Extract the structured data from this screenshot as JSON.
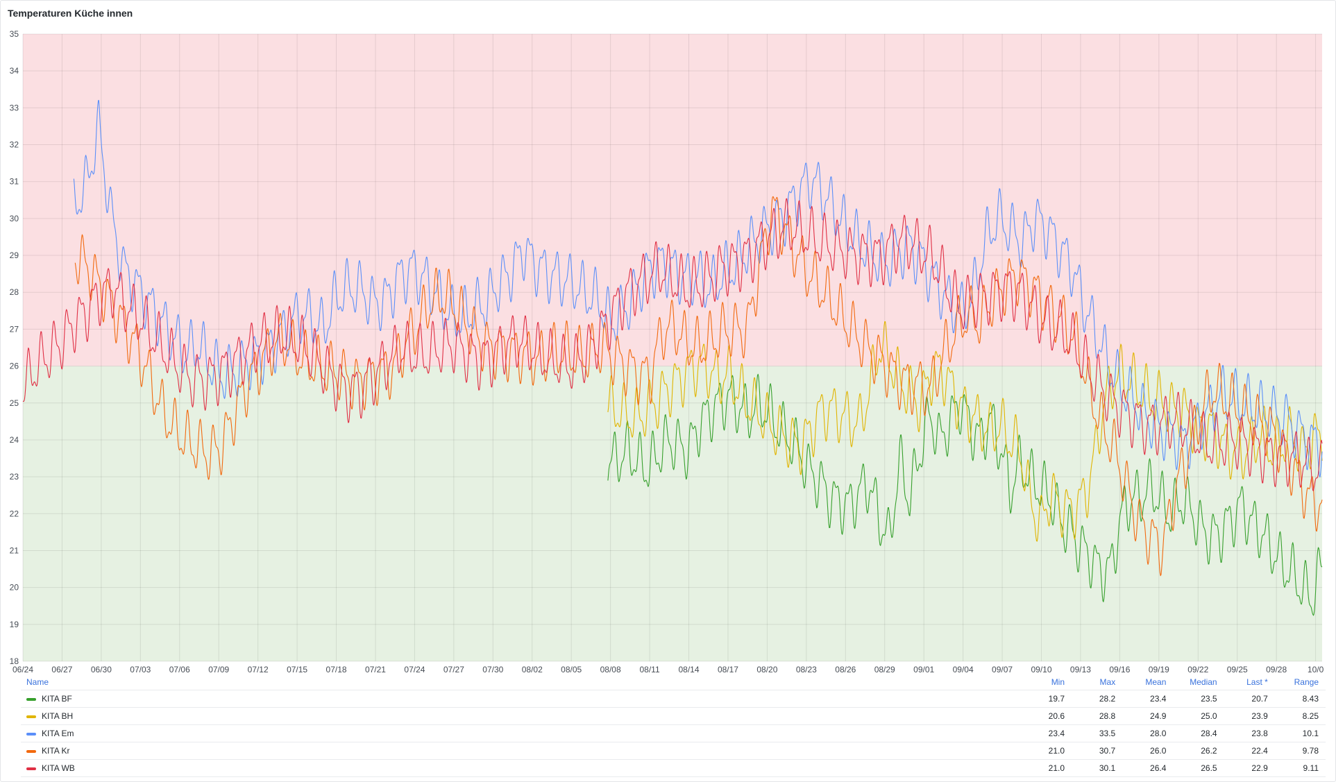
{
  "panel": {
    "title": "Temperaturen Küche innen"
  },
  "chart_data": {
    "type": "line",
    "title": "Temperaturen Küche innen",
    "ylim": [
      18,
      35
    ],
    "y_ticks": [
      18,
      19,
      20,
      21,
      22,
      23,
      24,
      25,
      26,
      27,
      28,
      29,
      30,
      31,
      32,
      33,
      34,
      35
    ],
    "x_tick_labels": [
      "06/24",
      "06/27",
      "06/30",
      "07/03",
      "07/06",
      "07/09",
      "07/12",
      "07/15",
      "07/18",
      "07/21",
      "07/24",
      "07/27",
      "07/30",
      "08/02",
      "08/05",
      "08/08",
      "08/11",
      "08/14",
      "08/17",
      "08/20",
      "08/23",
      "08/26",
      "08/29",
      "09/01",
      "09/04",
      "09/07",
      "09/10",
      "09/13",
      "09/16",
      "09/19",
      "09/22",
      "09/25",
      "09/28",
      "10/0"
    ],
    "x_range_days": [
      0,
      99.5
    ],
    "grid": true,
    "thresholds": [
      {
        "from": 18,
        "to": 26,
        "color": "#e6f1e2"
      },
      {
        "from": 26,
        "to": 35,
        "color": "#fbdfe2"
      }
    ],
    "series": [
      {
        "name": "KITA BF",
        "color": "#37a02d",
        "start_day": 44.8,
        "end_day": 99.5,
        "values": [
          23.5,
          23.7,
          23.9,
          23.6,
          23.4,
          23.8,
          24.1,
          23.9,
          23.7,
          24.3,
          24.6,
          24.8,
          25.0,
          24.7,
          24.5,
          24.8,
          24.6,
          24.2,
          24.0,
          23.7,
          23.2,
          23.0,
          22.6,
          22.5,
          22.4,
          22.8,
          23.0,
          22.0,
          21.4,
          23.5,
          22.4,
          23.6,
          24.6,
          23.8,
          24.3,
          24.8,
          24.2,
          23.8,
          24.4,
          23.7,
          22.6,
          23.4,
          23.0,
          22.8,
          22.6,
          22.0,
          21.7,
          21.3,
          21.0,
          20.6,
          20.6,
          22.0,
          22.4,
          22.4,
          22.6,
          22.2,
          21.8,
          22.2,
          21.9,
          21.4,
          21.2,
          21.4,
          21.8,
          22.2,
          21.8,
          21.6,
          21.2,
          20.8,
          20.6,
          20.2,
          19.9,
          20.8
        ]
      },
      {
        "name": "KITA BH",
        "color": "#e0b400",
        "start_day": 44.8,
        "end_day": 99.5,
        "values": [
          25.0,
          24.8,
          24.6,
          24.5,
          24.7,
          24.9,
          25.2,
          25.4,
          25.7,
          25.9,
          25.8,
          25.6,
          25.8,
          25.4,
          25.1,
          24.9,
          24.6,
          24.4,
          24.2,
          24.0,
          24.3,
          24.8,
          24.9,
          24.7,
          24.5,
          24.3,
          25.2,
          26.4,
          26.0,
          25.4,
          25.1,
          24.8,
          25.6,
          25.9,
          25.5,
          25.0,
          24.8,
          24.6,
          24.4,
          24.6,
          24.2,
          23.9,
          22.5,
          21.8,
          22.6,
          22.2,
          22.0,
          22.2,
          22.8,
          24.4,
          25.3,
          25.6,
          25.4,
          25.2,
          25.0,
          25.0,
          24.8,
          24.9,
          24.6,
          24.4,
          24.5,
          24.1,
          23.9,
          23.8,
          24.0,
          24.3,
          23.8,
          23.9,
          24.1,
          23.5,
          23.9,
          23.9
        ]
      },
      {
        "name": "KITA Em",
        "color": "#5b8ff9",
        "start_day": 3.9,
        "end_day": 99.5,
        "values": [
          30.5,
          31.0,
          32.5,
          30.0,
          28.5,
          28.0,
          27.5,
          27.0,
          26.6,
          26.2,
          26.5,
          26.0,
          25.8,
          26.0,
          26.3,
          26.5,
          26.8,
          27.2,
          27.5,
          27.4,
          27.0,
          27.8,
          28.0,
          27.9,
          27.5,
          27.6,
          28.2,
          28.5,
          28.3,
          28.0,
          27.5,
          27.4,
          27.7,
          27.9,
          28.4,
          28.7,
          29.3,
          28.8,
          28.5,
          28.3,
          28.1,
          27.8,
          27.6,
          27.0,
          27.3,
          27.9,
          28.5,
          28.8,
          28.7,
          28.5,
          28.6,
          28.3,
          28.7,
          28.9,
          29.3,
          29.6,
          29.8,
          30.0,
          30.5,
          30.9,
          30.5,
          30.0,
          29.5,
          29.2,
          29.0,
          28.8,
          29.2,
          29.4,
          29.0,
          28.5,
          28.0,
          27.6,
          28.0,
          29.4,
          30.0,
          29.6,
          29.2,
          29.8,
          29.5,
          29.0,
          28.5,
          27.5,
          26.8,
          26.0,
          25.5,
          25.2,
          24.8,
          24.5,
          24.3,
          24.0,
          24.5,
          24.8,
          25.2,
          25.0,
          24.8,
          24.6,
          24.5,
          24.4,
          24.1,
          23.9,
          23.8
        ]
      },
      {
        "name": "KITA Kr",
        "color": "#f2690e",
        "start_day": 4.0,
        "end_day": 99.5,
        "values": [
          28.8,
          28.5,
          28.0,
          27.5,
          27.0,
          26.5,
          25.8,
          25.0,
          24.5,
          24.2,
          24.0,
          23.8,
          24.0,
          24.8,
          25.5,
          26.0,
          26.4,
          26.6,
          26.2,
          25.9,
          25.8,
          25.7,
          25.6,
          25.5,
          25.7,
          25.9,
          26.1,
          26.8,
          27.3,
          27.9,
          28.1,
          27.8,
          27.2,
          26.7,
          26.4,
          26.3,
          26.2,
          26.1,
          26.0,
          26.2,
          26.3,
          26.2,
          26.3,
          26.6,
          26.4,
          26.2,
          26.0,
          25.9,
          27.1,
          27.2,
          26.7,
          26.5,
          26.6,
          26.8,
          26.8,
          26.8,
          28.5,
          30.1,
          29.6,
          29.0,
          28.5,
          28.2,
          27.8,
          27.4,
          27.0,
          26.6,
          26.3,
          25.9,
          25.6,
          25.5,
          25.3,
          26.2,
          26.8,
          27.2,
          27.0,
          27.6,
          28.0,
          28.4,
          28.2,
          27.9,
          27.6,
          27.3,
          26.8,
          25.5,
          24.6,
          23.9,
          22.8,
          21.8,
          21.3,
          21.0,
          22.5,
          23.4,
          24.5,
          25.2,
          25.0,
          24.8,
          24.6,
          24.5,
          24.3,
          23.8,
          23.2,
          22.6,
          22.4
        ]
      },
      {
        "name": "KITA WB",
        "color": "#e02f44",
        "start_day": 0.0,
        "end_day": 99.5,
        "values": [
          25.2,
          25.8,
          26.2,
          26.6,
          27.2,
          27.6,
          28.1,
          28.3,
          27.8,
          27.5,
          27.0,
          26.5,
          26.0,
          25.6,
          25.5,
          25.6,
          25.8,
          26.1,
          26.4,
          26.6,
          26.8,
          26.7,
          26.5,
          26.2,
          25.8,
          25.5,
          25.6,
          25.9,
          26.2,
          26.5,
          26.3,
          26.2,
          26.3,
          26.4,
          26.2,
          26.0,
          26.1,
          26.5,
          26.7,
          26.6,
          26.4,
          26.3,
          26.2,
          26.4,
          26.8,
          27.3,
          27.8,
          28.1,
          28.3,
          28.5,
          28.2,
          27.9,
          28.0,
          28.3,
          28.6,
          28.8,
          29.1,
          29.5,
          29.8,
          30.0,
          29.8,
          29.6,
          29.4,
          29.2,
          29.0,
          28.9,
          28.8,
          29.1,
          29.2,
          29.0,
          28.8,
          28.2,
          27.6,
          27.8,
          28.0,
          28.2,
          28.3,
          28.1,
          27.6,
          27.2,
          27.0,
          26.5,
          25.8,
          25.3,
          24.8,
          24.5,
          24.3,
          24.2,
          24.4,
          24.5,
          24.3,
          24.0,
          24.1,
          24.2,
          24.1,
          23.9,
          23.7,
          23.6,
          23.5,
          23.2,
          23.0
        ]
      }
    ]
  },
  "legend": {
    "headers": {
      "name": "Name",
      "min": "Min",
      "max": "Max",
      "mean": "Mean",
      "median": "Median",
      "last": "Last *",
      "range": "Range"
    },
    "rows": [
      {
        "name": "KITA BF",
        "color": "#37a02d",
        "min": "19.7",
        "max": "28.2",
        "mean": "23.4",
        "median": "23.5",
        "last": "20.7",
        "range": "8.43"
      },
      {
        "name": "KITA BH",
        "color": "#e0b400",
        "min": "20.6",
        "max": "28.8",
        "mean": "24.9",
        "median": "25.0",
        "last": "23.9",
        "range": "8.25"
      },
      {
        "name": "KITA Em",
        "color": "#5b8ff9",
        "min": "23.4",
        "max": "33.5",
        "mean": "28.0",
        "median": "28.4",
        "last": "23.8",
        "range": "10.1"
      },
      {
        "name": "KITA Kr",
        "color": "#f2690e",
        "min": "21.0",
        "max": "30.7",
        "mean": "26.0",
        "median": "26.2",
        "last": "22.4",
        "range": "9.78"
      },
      {
        "name": "KITA WB",
        "color": "#e02f44",
        "min": "21.0",
        "max": "30.1",
        "mean": "26.4",
        "median": "26.5",
        "last": "22.9",
        "range": "9.11"
      }
    ]
  }
}
